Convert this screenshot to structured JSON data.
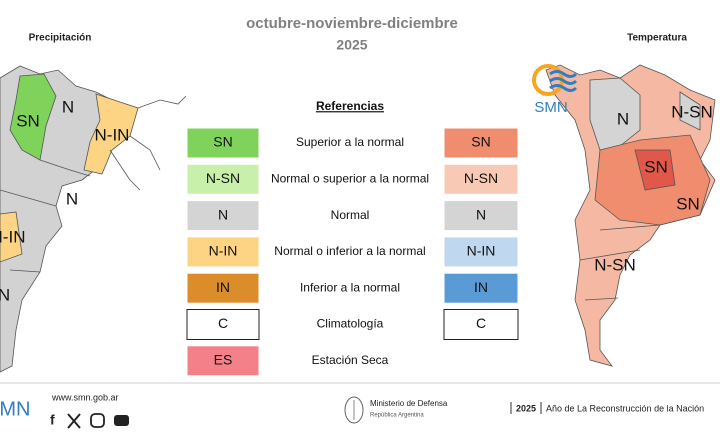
{
  "header": {
    "title": "octubre-noviembre-diciembre",
    "year": "2025"
  },
  "left_map": {
    "title": "Precipitación",
    "labels": [
      "SN",
      "N",
      "N-IN",
      "N",
      "N-IN",
      "N"
    ]
  },
  "right_map": {
    "title": "Temperatura",
    "logo": "SMN",
    "labels": [
      "N",
      "N-SN",
      "SN",
      "SN",
      "N-SN"
    ]
  },
  "legend": {
    "title": "Referencias",
    "items": [
      {
        "left": "SN",
        "left_color": "#7fd35b",
        "text": "Superior a la normal",
        "right": "SN",
        "right_color": "#ef8d6e"
      },
      {
        "left": "N-SN",
        "left_color": "#c8f0ab",
        "text": "Normal o superior a la normal",
        "right": "N-SN",
        "right_color": "#f8cab6"
      },
      {
        "left": "N",
        "left_color": "#d4d4d4",
        "text": "Normal",
        "right": "N",
        "right_color": "#d4d4d4"
      },
      {
        "left": "N-IN",
        "left_color": "#fdd483",
        "text": "Normal o inferior a la normal",
        "right": "N-IN",
        "right_color": "#bfd8ef"
      },
      {
        "left": "IN",
        "left_color": "#dc8d2b",
        "text": "Inferior a la normal",
        "right": "IN",
        "right_color": "#5b9bd5"
      },
      {
        "left": "C",
        "left_color": "#ffffff",
        "text": "Climatología",
        "right": "C",
        "right_color": "#ffffff"
      },
      {
        "left": "ES",
        "left_color": "#f4808a",
        "text": "Estación Seca"
      }
    ]
  },
  "footer": {
    "logo": "SMN",
    "url": "www.smn.gob.ar",
    "ministry": "Ministerio de Defensa",
    "country": "República Argentina",
    "year": "2025",
    "motto": "Año de La Reconstrucción de la Nación"
  }
}
